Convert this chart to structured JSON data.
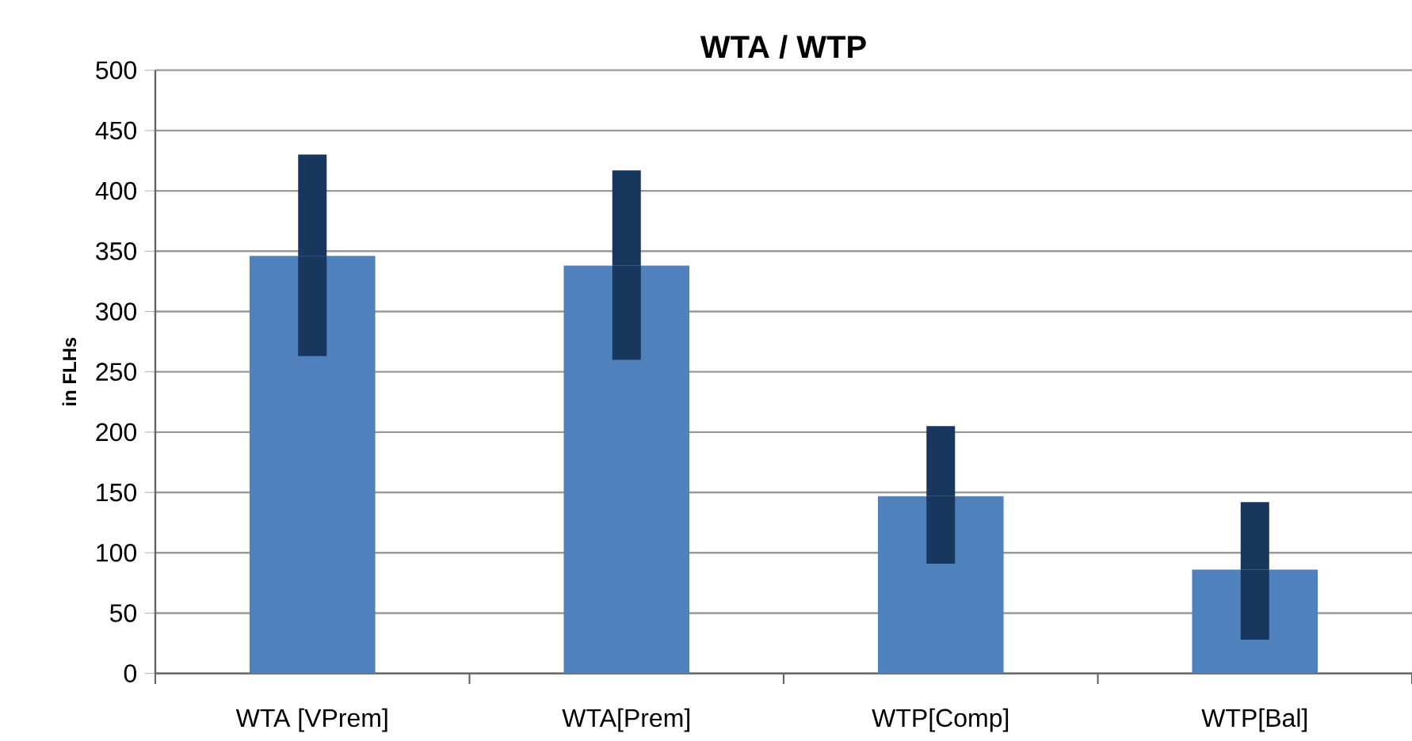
{
  "chart_data": {
    "type": "bar",
    "title": "WTA / WTP",
    "ylabel": "in FLHs",
    "categories": [
      "WTA [VPrem]",
      "WTA[Prem]",
      "WTP[Comp]",
      "WTP[Bal]"
    ],
    "values": [
      346,
      338,
      147,
      86
    ],
    "errors": [
      [
        263,
        430
      ],
      [
        260,
        417
      ],
      [
        91,
        205
      ],
      [
        28,
        142
      ]
    ],
    "color": "#4f81bd",
    "ylim": [
      0,
      500
    ],
    "yticks": [
      0,
      50,
      100,
      150,
      200,
      250,
      300,
      350,
      400,
      450,
      500
    ],
    "grid": "y"
  }
}
